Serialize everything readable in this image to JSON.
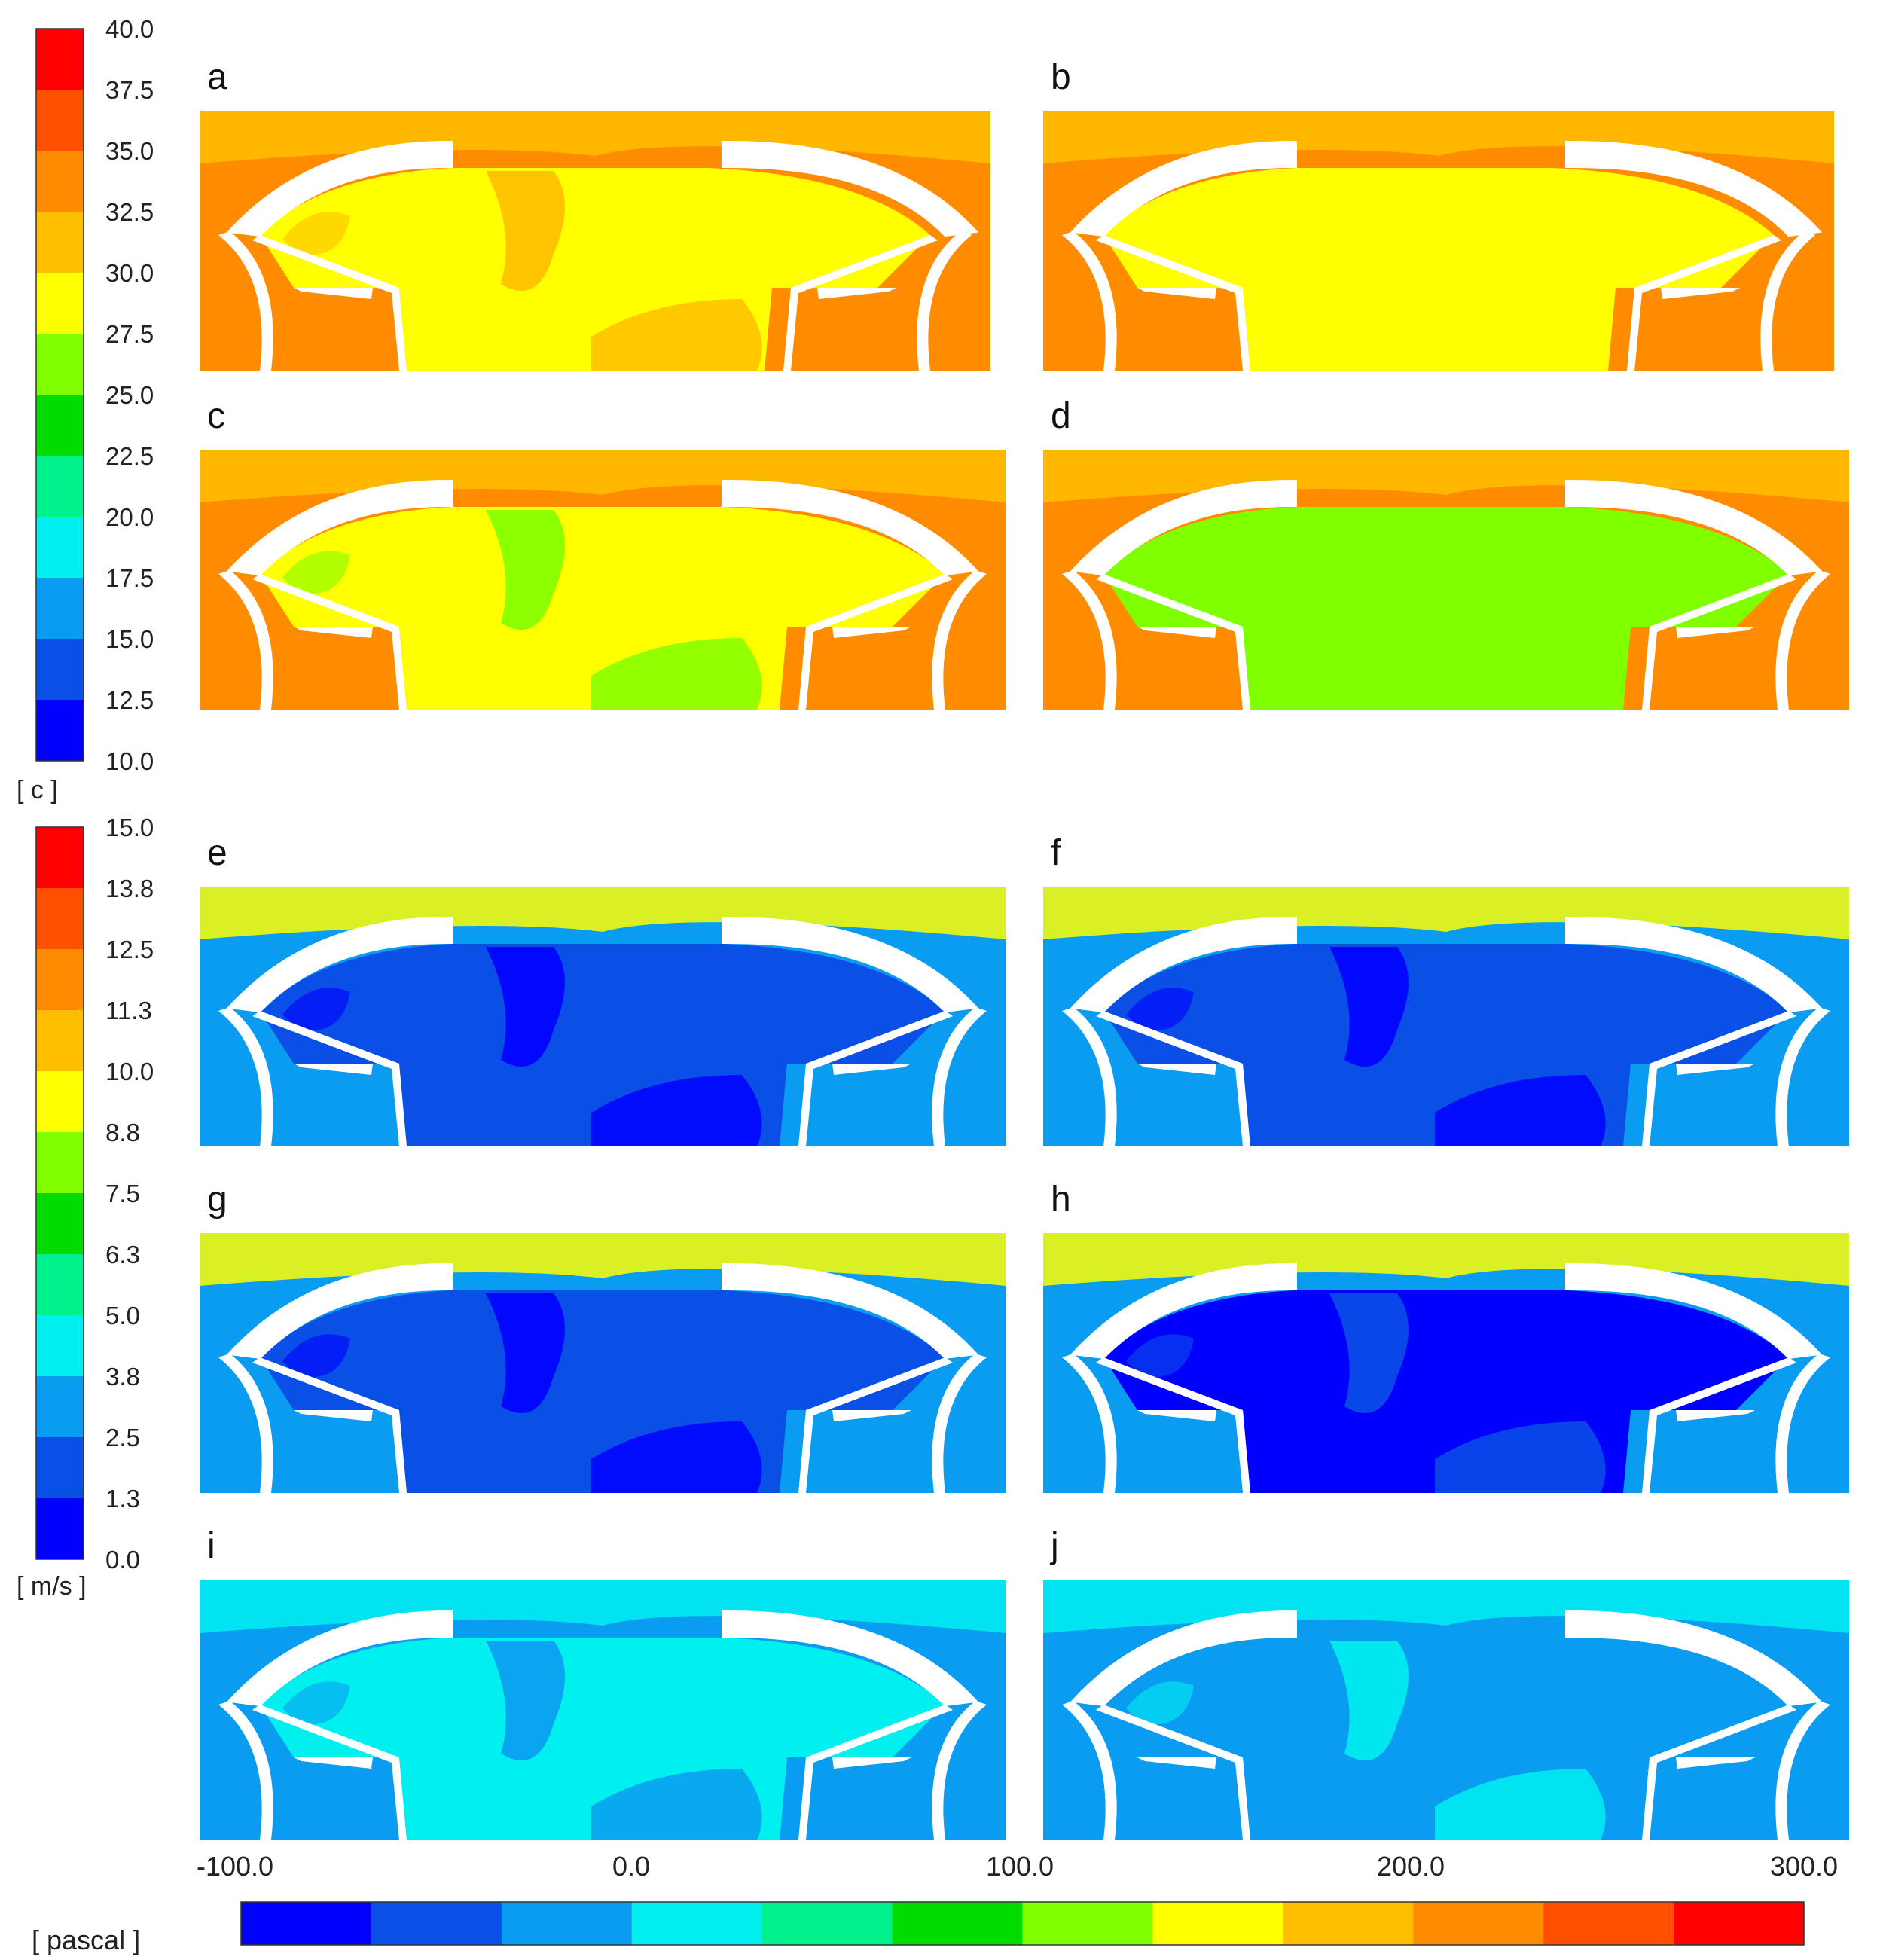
{
  "colorbars": {
    "temperature": {
      "unit": "[ c ]",
      "ticks": [
        "40.0",
        "37.5",
        "35.0",
        "32.5",
        "30.0",
        "27.5",
        "25.0",
        "22.5",
        "20.0",
        "17.5",
        "15.0",
        "12.5",
        "10.0"
      ]
    },
    "velocity": {
      "unit": "[ m/s ]",
      "ticks": [
        "15.0",
        "13.8",
        "12.5",
        "11.3",
        "10.0",
        "8.8",
        "7.5",
        "6.3",
        "5.0",
        "3.8",
        "2.5",
        "1.3",
        "0.0"
      ]
    },
    "pressure": {
      "unit": "[ pascal ]",
      "ticks": [
        "-100.0",
        "0.0",
        "100.0",
        "200.0",
        "300.0"
      ]
    }
  },
  "palette": [
    "#0000ff",
    "#0a4fe6",
    "#0a9cf0",
    "#00f0f0",
    "#00f08c",
    "#00dc00",
    "#80ff00",
    "#ffff00",
    "#ffbe00",
    "#ff8c00",
    "#ff5000",
    "#ff0000"
  ],
  "panels": [
    {
      "label": "a",
      "field": "temperature",
      "background": "#ff8c00",
      "interior": "#ffff00",
      "top_band": "#ffbe00",
      "accent": "#ffbe00"
    },
    {
      "label": "b",
      "field": "temperature",
      "background": "#ff8c00",
      "interior": "#ffff00",
      "top_band": "#ffbe00",
      "accent": "#ffff00"
    },
    {
      "label": "c",
      "field": "temperature",
      "background": "#ff8c00",
      "interior": "#ffff00",
      "top_band": "#ffbe00",
      "accent": "#80ff00"
    },
    {
      "label": "d",
      "field": "temperature",
      "background": "#ff8c00",
      "interior": "#80ff00",
      "top_band": "#ffbe00",
      "accent": "#80ff00"
    },
    {
      "label": "e",
      "field": "velocity",
      "background": "#0a9cf0",
      "interior": "#0a4fe6",
      "top_band": "#ffff00",
      "accent": "#0000ff"
    },
    {
      "label": "f",
      "field": "velocity",
      "background": "#0a9cf0",
      "interior": "#0a4fe6",
      "top_band": "#ffff00",
      "accent": "#0000ff"
    },
    {
      "label": "g",
      "field": "velocity",
      "background": "#0a9cf0",
      "interior": "#0a4fe6",
      "top_band": "#ffff00",
      "accent": "#0000ff"
    },
    {
      "label": "h",
      "field": "velocity",
      "background": "#0a9cf0",
      "interior": "#0000ff",
      "top_band": "#ffff00",
      "accent": "#0a4fe6"
    },
    {
      "label": "i",
      "field": "pressure",
      "background": "#0a9cf0",
      "interior": "#00f0f0",
      "top_band": "#00f0f0",
      "accent": "#0a9cf0"
    },
    {
      "label": "j",
      "field": "pressure",
      "background": "#0a9cf0",
      "interior": "#0a9cf0",
      "top_band": "#00f0f0",
      "accent": "#00f0f0"
    }
  ]
}
